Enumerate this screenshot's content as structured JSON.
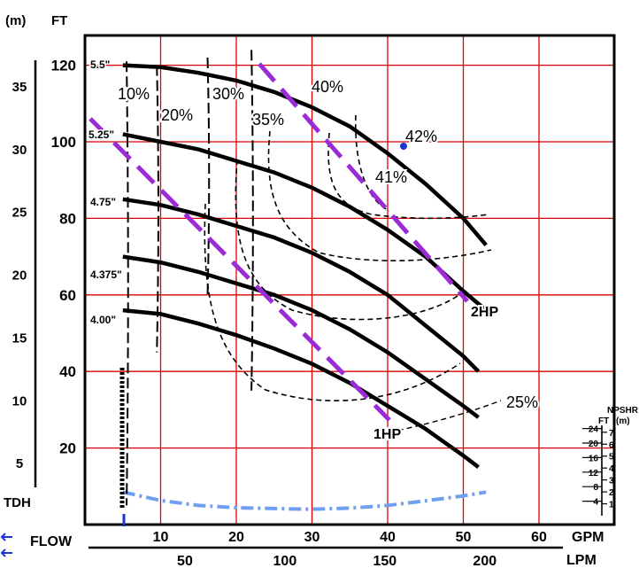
{
  "chart_data": {
    "type": "line",
    "unit_labels": {
      "metric": "(m)",
      "feet": "FT"
    },
    "tdh_label": "TDH",
    "flow_label": "FLOW",
    "gpm_label": "GPM",
    "lpm_label": "LPM",
    "npshr_label": "NPSHR",
    "npshr_units": {
      "feet": "FT",
      "metric": "(m)"
    },
    "xlim_gpm": [
      0,
      65
    ],
    "ylim_ft": [
      0,
      130
    ],
    "gpm_ticks": [
      10,
      20,
      30,
      40,
      50,
      60
    ],
    "lpm_ticks": [
      50,
      100,
      150,
      200
    ],
    "ft_ticks": [
      20,
      40,
      60,
      80,
      100,
      120
    ],
    "m_ticks": [
      5,
      10,
      15,
      20,
      25,
      30,
      35
    ],
    "npshr_ft_ticks": [
      4,
      8,
      12,
      16,
      20,
      24
    ],
    "npshr_m_ticks": [
      1,
      2,
      3,
      4,
      5,
      6,
      7
    ],
    "grid": true,
    "series": [
      {
        "name": "5.5\"",
        "x": [
          5,
          10,
          15,
          20,
          25,
          30,
          35,
          40,
          45,
          50,
          53
        ],
        "y": [
          120,
          119.5,
          118,
          116,
          113,
          109,
          104,
          97,
          89,
          80,
          73
        ]
      },
      {
        "name": "5.25\"",
        "x": [
          5,
          10,
          15,
          20,
          25,
          30,
          35,
          40,
          45,
          50,
          53
        ],
        "y": [
          102,
          100,
          98,
          95,
          92,
          88,
          83,
          77,
          70,
          61,
          56
        ]
      },
      {
        "name": "4.75\"",
        "x": [
          5,
          10,
          15,
          20,
          25,
          30,
          35,
          40,
          45,
          50,
          52
        ],
        "y": [
          85,
          83.5,
          81,
          78,
          75,
          71,
          66,
          60,
          52,
          44,
          40
        ]
      },
      {
        "name": "4.375\"",
        "x": [
          5,
          10,
          15,
          20,
          25,
          30,
          35,
          40,
          45,
          50,
          52
        ],
        "y": [
          70,
          68.5,
          66,
          63,
          60,
          56,
          51,
          45,
          38,
          31,
          28
        ]
      },
      {
        "name": "4.00\"",
        "x": [
          5,
          10,
          15,
          20,
          25,
          30,
          35,
          40,
          45,
          50,
          52
        ],
        "y": [
          56,
          55,
          52.5,
          49.5,
          46,
          42,
          37,
          31,
          25,
          18,
          15
        ]
      }
    ],
    "efficiency_labels": [
      "10%",
      "20%",
      "30%",
      "35%",
      "40%",
      "41%",
      "42%",
      "25%"
    ],
    "hp_labels": [
      "2HP",
      "1HP"
    ],
    "npshr_curve": {
      "x": [
        5,
        10,
        15,
        20,
        25,
        30,
        35,
        40,
        45,
        50,
        53
      ],
      "y": [
        8.5,
        6.3,
        5,
        4.4,
        4.2,
        4,
        4.3,
        5,
        6.2,
        7.5,
        8.5
      ]
    },
    "colors": {
      "grid": "#dd0000",
      "curve": "#000000",
      "hp_dash": "#9a2bd6",
      "npshr": "#6f9ff0",
      "marker": "#1a36d6"
    }
  }
}
